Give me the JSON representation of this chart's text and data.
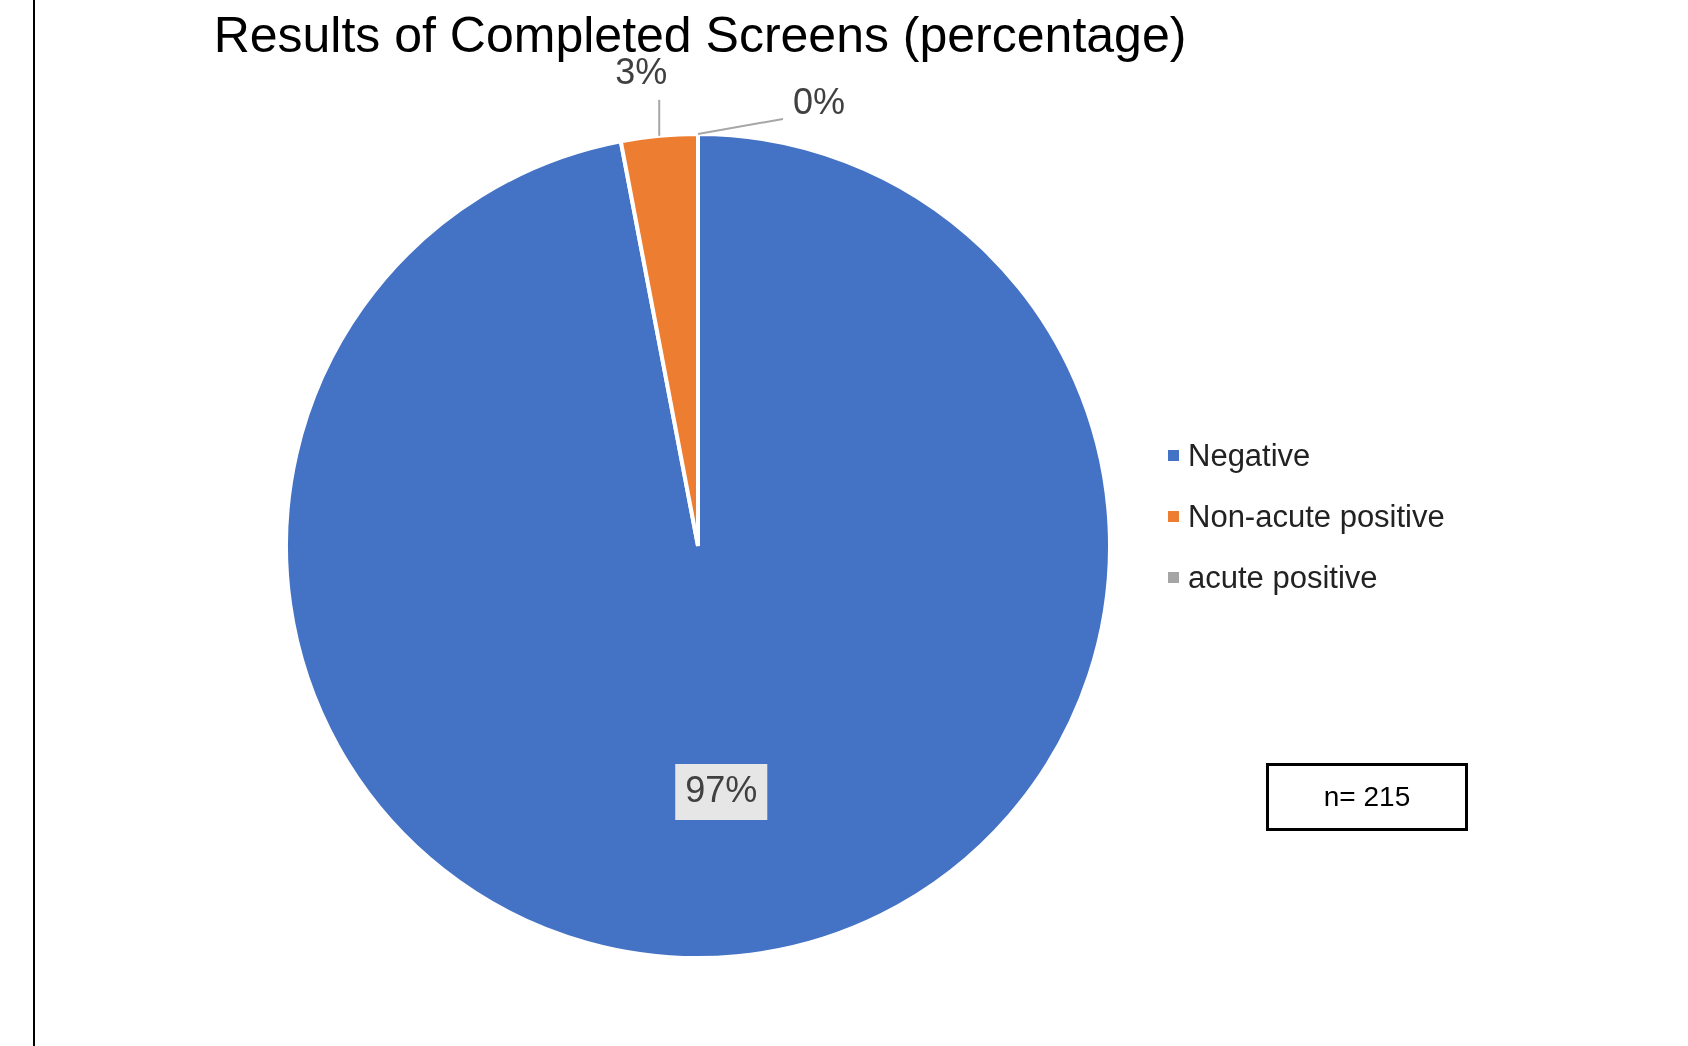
{
  "chart_data": {
    "type": "pie",
    "title": "Results of Completed Screens (percentage)",
    "categories": [
      "Negative",
      "Non-acute positive",
      "acute positive"
    ],
    "values": [
      97,
      3,
      0
    ],
    "colors": [
      "#4472c4",
      "#ed7d31",
      "#a5a5a5"
    ],
    "value_labels": [
      "97%",
      "3%",
      "0%"
    ],
    "legend": "right",
    "annotations": [
      "n= 215"
    ]
  }
}
